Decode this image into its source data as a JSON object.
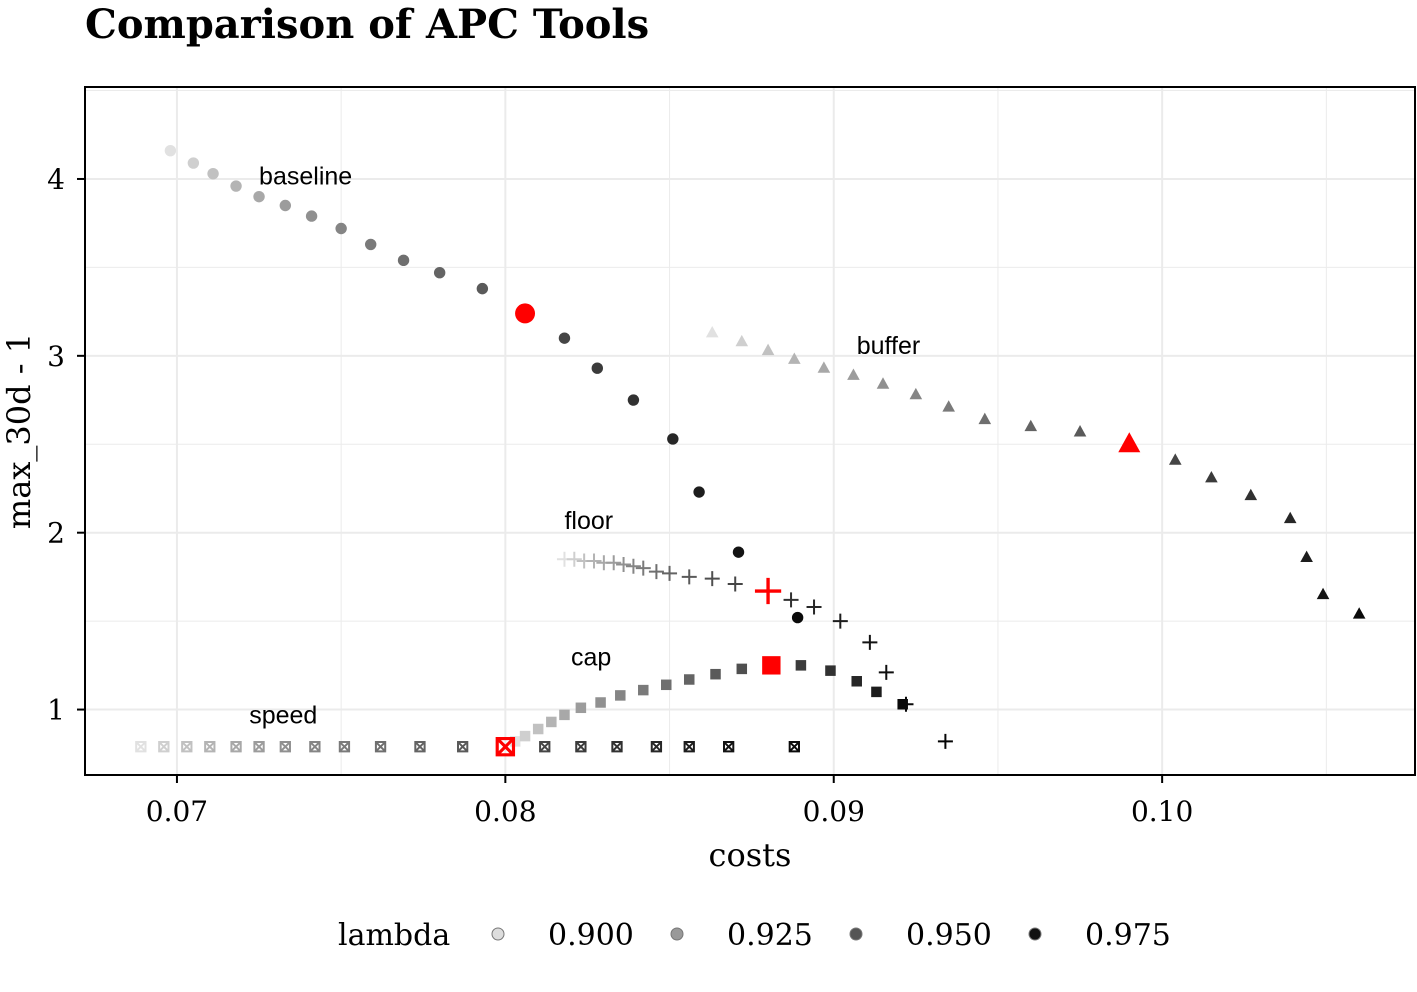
{
  "chart_data": {
    "type": "scatter",
    "title": "Comparison of APC Tools",
    "xlabel": "costs",
    "ylabel": "max_30d - 1",
    "xlim": [
      0.0672,
      0.1077
    ],
    "ylim": [
      0.63,
      4.52
    ],
    "x_ticks": [
      0.07,
      0.08,
      0.09,
      0.1
    ],
    "x_tick_labels": [
      "0.07",
      "0.08",
      "0.09",
      "0.10"
    ],
    "y_ticks": [
      1,
      2,
      3,
      4
    ],
    "y_tick_labels": [
      "1",
      "2",
      "3",
      "4"
    ],
    "grid": true,
    "highlight_color": "#ff0000",
    "legend": {
      "title": "lambda",
      "position": "bottom",
      "entries": [
        {
          "label": "0.900",
          "color": "#dddddd"
        },
        {
          "label": "0.925",
          "color": "#999999"
        },
        {
          "label": "0.950",
          "color": "#555555"
        },
        {
          "label": "0.975",
          "color": "#111111"
        }
      ]
    },
    "series": [
      {
        "name": "baseline",
        "marker": "circle",
        "x": [
          0.0698,
          0.0705,
          0.0711,
          0.0718,
          0.0725,
          0.0733,
          0.0741,
          0.075,
          0.0759,
          0.0769,
          0.078,
          0.0793,
          0.0806,
          0.0818,
          0.0828,
          0.0839,
          0.0851,
          0.0859,
          0.0871,
          0.0889
        ],
        "y": [
          4.16,
          4.09,
          4.03,
          3.96,
          3.9,
          3.85,
          3.79,
          3.72,
          3.63,
          3.54,
          3.47,
          3.38,
          3.24,
          3.1,
          2.93,
          2.75,
          2.53,
          2.23,
          1.89,
          1.52
        ],
        "lambda": [
          0.9,
          0.905,
          0.91,
          0.915,
          0.92,
          0.925,
          0.93,
          0.935,
          0.94,
          0.945,
          0.95,
          0.955,
          0.96,
          0.965,
          0.97,
          0.975,
          0.98,
          0.985,
          0.99,
          0.995
        ],
        "highlight_index": 12,
        "label": "baseline",
        "label_at": [
          0.0725,
          3.97
        ]
      },
      {
        "name": "buffer",
        "marker": "triangle",
        "x": [
          0.0863,
          0.0872,
          0.088,
          0.0888,
          0.0897,
          0.0906,
          0.0915,
          0.0925,
          0.0935,
          0.0946,
          0.096,
          0.0975,
          0.099,
          0.1004,
          0.1015,
          0.1027,
          0.1039,
          0.1044,
          0.1049,
          0.106
        ],
        "y": [
          3.13,
          3.08,
          3.03,
          2.98,
          2.93,
          2.89,
          2.84,
          2.78,
          2.71,
          2.64,
          2.6,
          2.57,
          2.5,
          2.41,
          2.31,
          2.21,
          2.08,
          1.86,
          1.65,
          1.54
        ],
        "lambda": [
          0.9,
          0.905,
          0.91,
          0.915,
          0.92,
          0.925,
          0.93,
          0.935,
          0.94,
          0.945,
          0.95,
          0.955,
          0.96,
          0.965,
          0.97,
          0.975,
          0.98,
          0.985,
          0.99,
          0.995
        ],
        "highlight_index": 12,
        "label": "buffer",
        "label_at": [
          0.0907,
          3.01
        ]
      },
      {
        "name": "floor",
        "marker": "plus",
        "x": [
          0.0818,
          0.0821,
          0.0824,
          0.0827,
          0.083,
          0.0833,
          0.0836,
          0.0839,
          0.0842,
          0.0846,
          0.085,
          0.0856,
          0.0863,
          0.087,
          0.088,
          0.0887,
          0.0894,
          0.0902,
          0.0911,
          0.0916,
          0.0922,
          0.0934
        ],
        "y": [
          1.85,
          1.85,
          1.84,
          1.84,
          1.83,
          1.83,
          1.82,
          1.81,
          1.8,
          1.78,
          1.77,
          1.75,
          1.74,
          1.71,
          1.67,
          1.62,
          1.58,
          1.5,
          1.38,
          1.21,
          1.03,
          0.82
        ],
        "lambda": [
          0.9,
          0.905,
          0.91,
          0.915,
          0.92,
          0.925,
          0.93,
          0.935,
          0.94,
          0.945,
          0.95,
          0.955,
          0.96,
          0.965,
          0.97,
          0.975,
          0.98,
          0.985,
          0.99,
          0.992,
          0.995,
          0.998
        ],
        "highlight_index": 14,
        "label": "floor",
        "label_at": [
          0.0818,
          2.02
        ]
      },
      {
        "name": "cap",
        "marker": "square",
        "x": [
          0.0803,
          0.0806,
          0.081,
          0.0814,
          0.0818,
          0.0823,
          0.0829,
          0.0835,
          0.0842,
          0.0849,
          0.0856,
          0.0864,
          0.0872,
          0.0881,
          0.089,
          0.0899,
          0.0907,
          0.0913,
          0.0921
        ],
        "y": [
          0.82,
          0.85,
          0.89,
          0.93,
          0.97,
          1.01,
          1.04,
          1.08,
          1.11,
          1.14,
          1.17,
          1.2,
          1.23,
          1.25,
          1.25,
          1.22,
          1.16,
          1.1,
          1.03
        ],
        "lambda": [
          0.9,
          0.905,
          0.91,
          0.915,
          0.92,
          0.925,
          0.93,
          0.935,
          0.94,
          0.945,
          0.95,
          0.955,
          0.96,
          0.965,
          0.97,
          0.975,
          0.98,
          0.985,
          0.995
        ],
        "highlight_index": 13,
        "label": "cap",
        "label_at": [
          0.082,
          1.25
        ]
      },
      {
        "name": "speed",
        "marker": "square-cross",
        "x": [
          0.0689,
          0.0696,
          0.0703,
          0.071,
          0.0718,
          0.0725,
          0.0733,
          0.0742,
          0.0751,
          0.0762,
          0.0774,
          0.0787,
          0.08,
          0.0812,
          0.0823,
          0.0834,
          0.0846,
          0.0856,
          0.0868,
          0.0888
        ],
        "y": [
          0.79,
          0.79,
          0.79,
          0.79,
          0.79,
          0.79,
          0.79,
          0.79,
          0.79,
          0.79,
          0.79,
          0.79,
          0.79,
          0.79,
          0.79,
          0.79,
          0.79,
          0.79,
          0.79,
          0.79
        ],
        "lambda": [
          0.9,
          0.905,
          0.91,
          0.915,
          0.92,
          0.925,
          0.93,
          0.935,
          0.94,
          0.945,
          0.95,
          0.955,
          0.96,
          0.965,
          0.97,
          0.975,
          0.98,
          0.985,
          0.99,
          0.995
        ],
        "highlight_index": 12,
        "label": "speed",
        "label_at": [
          0.0722,
          0.92
        ]
      }
    ]
  }
}
